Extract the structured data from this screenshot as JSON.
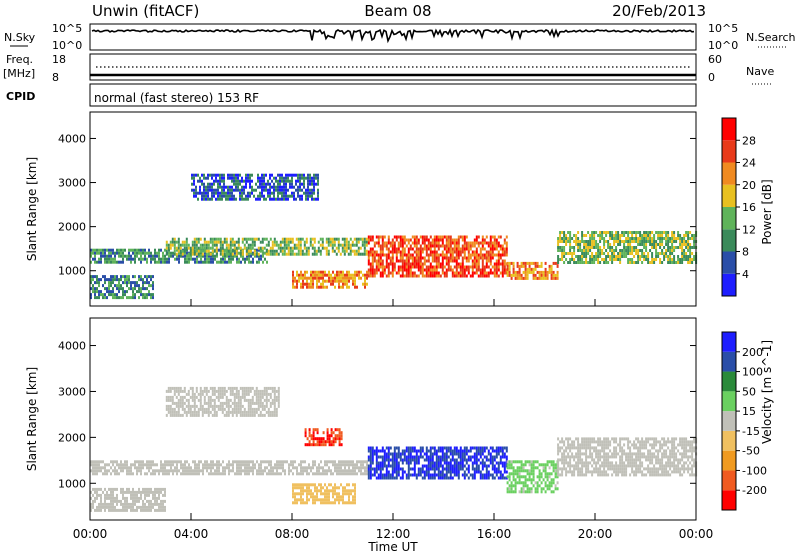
{
  "header": {
    "title": "Unwin (fitACF)",
    "beam": "Beam 08",
    "date": "20/Feb/2013",
    "program": "normal (fast stereo) 153 RF"
  },
  "strip_labels": {
    "nsky_top": "N.Sky",
    "nsky_hi": "10^5",
    "nsky_lo": "10^0",
    "nsearch": "N.Search",
    "nsearch_hi": "10^5",
    "nsearch_lo": "10^0",
    "freq_top": "Freq.",
    "freq_unit": "[MHz]",
    "freq_hi": "18",
    "freq_lo": "8",
    "nave": "Nave",
    "nave_hi": "60",
    "nave_lo": "0",
    "cpid": "CPID"
  },
  "chart_data": [
    {
      "type": "heatmap",
      "name": "power",
      "ylabel": "Slant Range [km]",
      "yticks": [
        1000,
        2000,
        3000,
        4000
      ],
      "ylim": [
        200,
        4600
      ],
      "colorbar_label": "Power [dB]",
      "colorbar_ticks": [
        "4",
        "8",
        "12",
        "16",
        "20",
        "24",
        "28"
      ],
      "colorbar_range": [
        0,
        32
      ],
      "colorbar_colors": [
        "#1e1eff",
        "#2a4ea8",
        "#3a8a5a",
        "#5fb35a",
        "#e8c020",
        "#f08a20",
        "#e83a1a",
        "#ff0000"
      ],
      "bands": [
        {
          "x0": 0.0,
          "x1": 7.0,
          "y0": 1180,
          "y1": 1500,
          "level": 10
        },
        {
          "x0": 3.0,
          "x1": 11.0,
          "y0": 1350,
          "y1": 1750,
          "level": 14
        },
        {
          "x0": 11.0,
          "x1": 16.5,
          "y0": 900,
          "y1": 1800,
          "level": 26
        },
        {
          "x0": 8.0,
          "x1": 11.0,
          "y0": 600,
          "y1": 1000,
          "level": 22
        },
        {
          "x0": 16.5,
          "x1": 18.5,
          "y0": 800,
          "y1": 1200,
          "level": 22
        },
        {
          "x0": 18.5,
          "x1": 24.0,
          "y0": 1200,
          "y1": 1900,
          "level": 14
        },
        {
          "x0": 4.0,
          "x1": 9.0,
          "y0": 2600,
          "y1": 3200,
          "level": 6
        },
        {
          "x0": 0.0,
          "x1": 2.5,
          "y0": 400,
          "y1": 900,
          "level": 10
        }
      ]
    },
    {
      "type": "heatmap",
      "name": "velocity",
      "ylabel": "Slant Range [km]",
      "yticks": [
        1000,
        2000,
        3000,
        4000
      ],
      "ylim": [
        200,
        4600
      ],
      "xlabel": "Time UT",
      "xticks": [
        "00:00",
        "04:00",
        "08:00",
        "12:00",
        "16:00",
        "20:00",
        "00:00"
      ],
      "xlim": [
        0,
        24
      ],
      "colorbar_label": "Velocity [m s^-1]",
      "colorbar_ticks": [
        "-200",
        "-100",
        "-50",
        "-15",
        "15",
        "50",
        "100",
        "200"
      ],
      "colorbar_range": [
        -250,
        250
      ],
      "colorbar_colors": [
        "#ff0000",
        "#f05a20",
        "#f09a20",
        "#f0c060",
        "#c0c0b8",
        "#6ad060",
        "#2a8a3a",
        "#2a4ea8",
        "#1e1eff"
      ],
      "bands": [
        {
          "x0": 0.0,
          "x1": 11.0,
          "y0": 1200,
          "y1": 1500,
          "level": 0
        },
        {
          "x0": 3.0,
          "x1": 7.5,
          "y0": 2500,
          "y1": 3100,
          "level": 0
        },
        {
          "x0": 8.5,
          "x1": 10.0,
          "y0": 1850,
          "y1": 2200,
          "level": -200
        },
        {
          "x0": 8.0,
          "x1": 10.5,
          "y0": 600,
          "y1": 1000,
          "level": -60
        },
        {
          "x0": 11.0,
          "x1": 16.5,
          "y0": 1100,
          "y1": 1800,
          "level": 200
        },
        {
          "x0": 16.5,
          "x1": 18.5,
          "y0": 800,
          "y1": 1500,
          "level": 40
        },
        {
          "x0": 18.5,
          "x1": 24.0,
          "y0": 1200,
          "y1": 2000,
          "level": 0
        },
        {
          "x0": 0.0,
          "x1": 3.0,
          "y0": 400,
          "y1": 900,
          "level": 0
        }
      ]
    }
  ]
}
